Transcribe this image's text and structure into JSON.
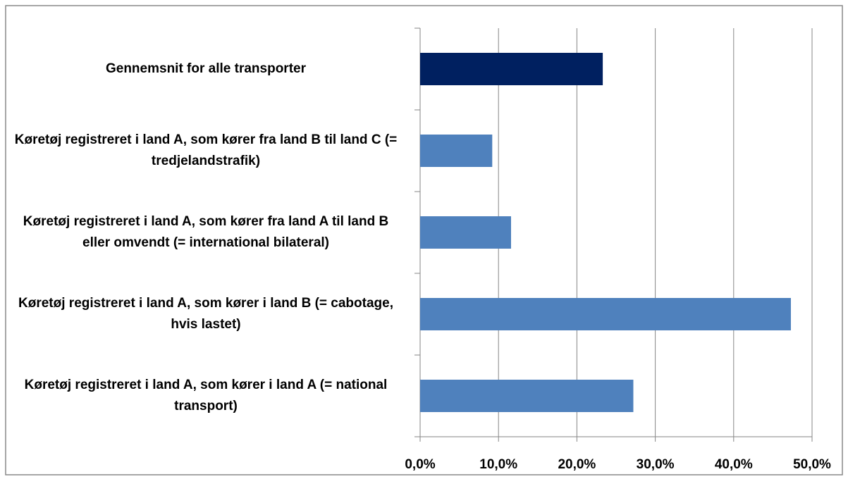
{
  "chart_data": {
    "type": "bar",
    "orientation": "horizontal",
    "categories": [
      "Gennemsnit for alle transporter",
      "Køretøj registreret i land A, som kører fra land B til land C (= tredjelandstrafik)",
      "Køretøj registreret i land A, som kører fra land A til land B eller omvendt (= international bilateral)",
      "Køretøj registreret i land A, som kører i land B (= cabotage, hvis lastet)",
      "Køretøj registreret i land A, som kører i land A (= national transport)"
    ],
    "values": [
      23.3,
      9.2,
      11.6,
      47.3,
      27.2
    ],
    "colors": [
      "#002060",
      "#4f81bd",
      "#4f81bd",
      "#4f81bd",
      "#4f81bd"
    ],
    "xlim": [
      0,
      50
    ],
    "xticks": [
      {
        "value": 0,
        "label": "0,0%"
      },
      {
        "value": 10,
        "label": "10,0%"
      },
      {
        "value": 20,
        "label": "20,0%"
      },
      {
        "value": 30,
        "label": "30,0%"
      },
      {
        "value": 40,
        "label": "40,0%"
      },
      {
        "value": 50,
        "label": "50,0%"
      }
    ],
    "grid": true
  }
}
